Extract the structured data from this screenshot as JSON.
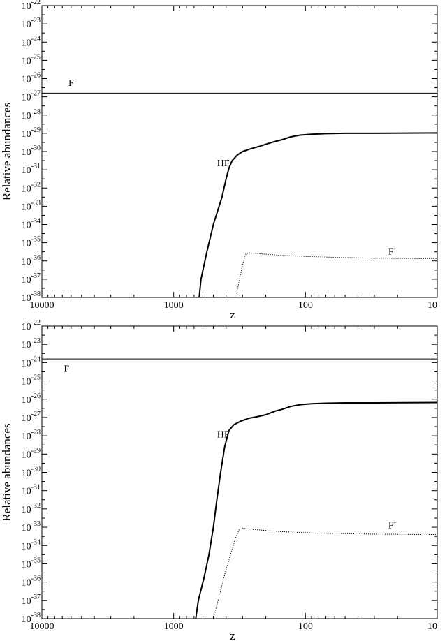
{
  "chart_data": [
    {
      "type": "line",
      "xlabel": "z",
      "ylabel": "Relative abundances",
      "x_scale": "log",
      "x_reversed": true,
      "xlim": [
        10000,
        10
      ],
      "x_ticks": [
        "10000",
        "1000",
        "100",
        "10"
      ],
      "y_scale": "log",
      "ylim_exponents": [
        -38,
        -22
      ],
      "y_tick_base": "10",
      "y_tick_exponents": [
        "-38",
        "-37",
        "-36",
        "-35",
        "-34",
        "-33",
        "-32",
        "-31",
        "-30",
        "-29",
        "-28",
        "-27",
        "-26",
        "-25",
        "-24",
        "-23",
        "-22"
      ],
      "grid": false,
      "series": [
        {
          "name": "F",
          "style": "solid-thin",
          "points": [
            [
              10000,
              -26.8
            ],
            [
              10,
              -26.8
            ]
          ]
        },
        {
          "name": "HF",
          "style": "solid-thick",
          "points": [
            [
              640,
              -38
            ],
            [
              620,
              -37
            ],
            [
              560,
              -35.5
            ],
            [
              500,
              -34
            ],
            [
              430,
              -32.5
            ],
            [
              400,
              -31.5
            ],
            [
              380,
              -30.9
            ],
            [
              360,
              -30.5
            ],
            [
              330,
              -30.2
            ],
            [
              300,
              -30.0
            ],
            [
              260,
              -29.85
            ],
            [
              220,
              -29.7
            ],
            [
              200,
              -29.6
            ],
            [
              170,
              -29.45
            ],
            [
              150,
              -29.35
            ],
            [
              130,
              -29.2
            ],
            [
              110,
              -29.1
            ],
            [
              90,
              -29.05
            ],
            [
              70,
              -29.02
            ],
            [
              50,
              -29.0
            ],
            [
              30,
              -29.0
            ],
            [
              10,
              -28.98
            ]
          ]
        },
        {
          "name": "F⁻",
          "label": "F-",
          "style": "dotted",
          "points": [
            [
              340,
              -38
            ],
            [
              320,
              -37.2
            ],
            [
              300,
              -36.2
            ],
            [
              285,
              -35.65
            ],
            [
              270,
              -35.55
            ],
            [
              250,
              -35.58
            ],
            [
              200,
              -35.63
            ],
            [
              150,
              -35.7
            ],
            [
              100,
              -35.75
            ],
            [
              60,
              -35.8
            ],
            [
              30,
              -35.85
            ],
            [
              10,
              -35.88
            ]
          ]
        }
      ],
      "annotations": [
        {
          "text": "F",
          "x": 6000,
          "y": -26.4
        },
        {
          "text": "HF",
          "x": 420,
          "y": -30.8
        },
        {
          "text": "F",
          "superscript": "-",
          "x": 22,
          "y": -35.65
        }
      ]
    },
    {
      "type": "line",
      "xlabel": "z",
      "ylabel": "Relative abundances",
      "x_scale": "log",
      "x_reversed": true,
      "xlim": [
        10000,
        10
      ],
      "x_ticks": [
        "10000",
        "1000",
        "100",
        "10"
      ],
      "y_scale": "log",
      "ylim_exponents": [
        -38,
        -22
      ],
      "y_tick_base": "10",
      "y_tick_exponents": [
        "-38",
        "-37",
        "-36",
        "-35",
        "-34",
        "-33",
        "-32",
        "-31",
        "-30",
        "-29",
        "-28",
        "-27",
        "-26",
        "-25",
        "-24",
        "-23",
        "-22"
      ],
      "grid": false,
      "series": [
        {
          "name": "F",
          "style": "solid-thin",
          "points": [
            [
              10000,
              -23.8
            ],
            [
              10,
              -23.8
            ]
          ]
        },
        {
          "name": "HF",
          "style": "solid-thick",
          "points": [
            [
              680,
              -38
            ],
            [
              650,
              -37
            ],
            [
              590,
              -35.8
            ],
            [
              540,
              -34.5
            ],
            [
              500,
              -33
            ],
            [
              470,
              -31.5
            ],
            [
              440,
              -30
            ],
            [
              410,
              -28.6
            ],
            [
              380,
              -27.7
            ],
            [
              350,
              -27.4
            ],
            [
              310,
              -27.2
            ],
            [
              270,
              -27.05
            ],
            [
              230,
              -26.95
            ],
            [
              200,
              -26.85
            ],
            [
              170,
              -26.65
            ],
            [
              150,
              -26.55
            ],
            [
              130,
              -26.4
            ],
            [
              110,
              -26.3
            ],
            [
              90,
              -26.25
            ],
            [
              70,
              -26.22
            ],
            [
              50,
              -26.2
            ],
            [
              30,
              -26.2
            ],
            [
              10,
              -26.18
            ]
          ]
        },
        {
          "name": "F⁻",
          "label": "F-",
          "style": "dotted",
          "points": [
            [
              500,
              -38
            ],
            [
              460,
              -37
            ],
            [
              410,
              -35.6
            ],
            [
              370,
              -34.5
            ],
            [
              340,
              -33.6
            ],
            [
              320,
              -33.15
            ],
            [
              300,
              -33.05
            ],
            [
              270,
              -33.1
            ],
            [
              220,
              -33.15
            ],
            [
              170,
              -33.22
            ],
            [
              120,
              -33.28
            ],
            [
              80,
              -33.32
            ],
            [
              50,
              -33.35
            ],
            [
              30,
              -33.38
            ],
            [
              10,
              -33.4
            ]
          ]
        }
      ],
      "annotations": [
        {
          "text": "F",
          "x": 6500,
          "y": -24.5
        },
        {
          "text": "HF",
          "x": 420,
          "y": -28.1
        },
        {
          "text": "F",
          "superscript": "-",
          "x": 22,
          "y": -33.05
        }
      ]
    }
  ]
}
